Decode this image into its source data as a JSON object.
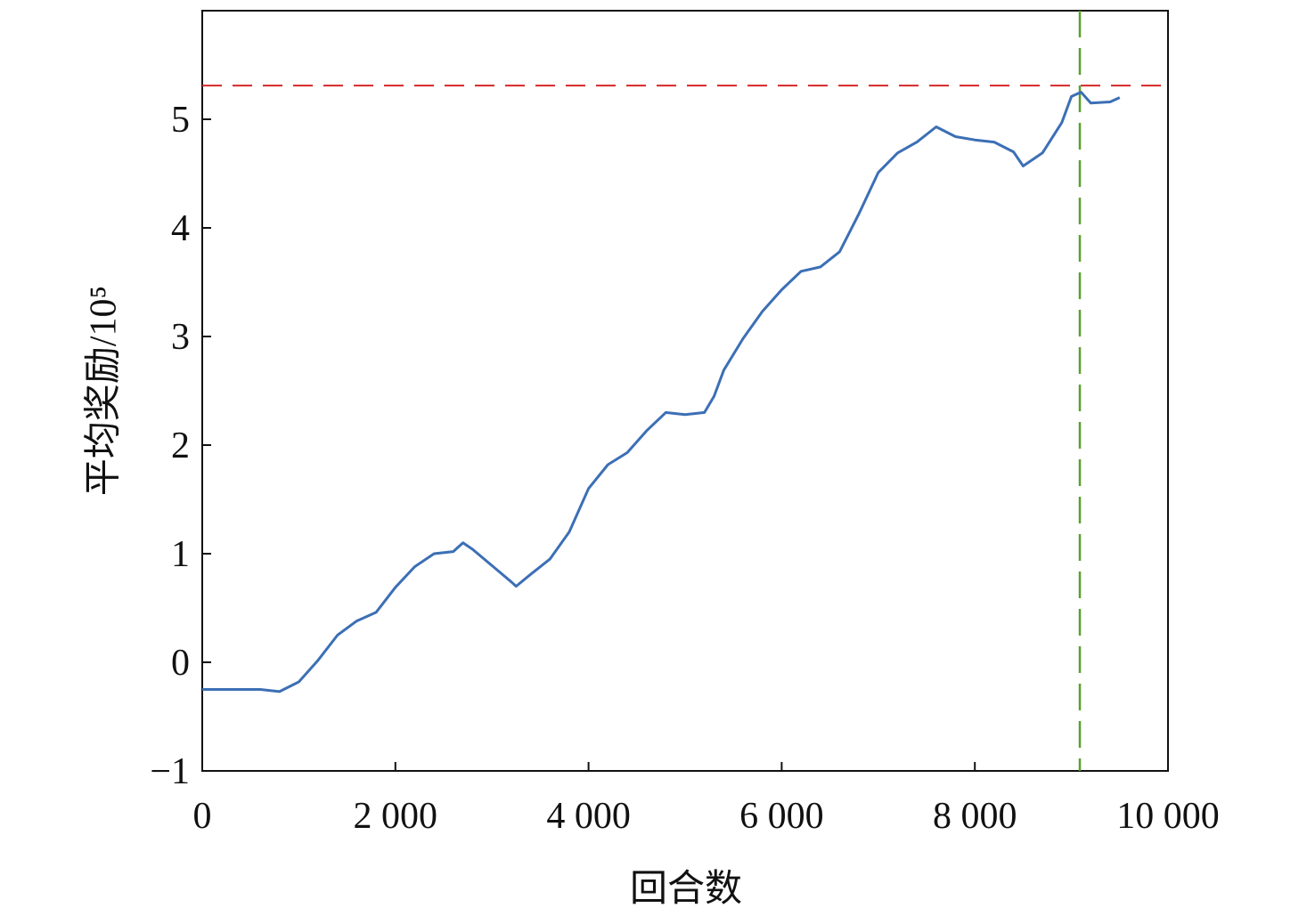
{
  "chart_data": {
    "type": "line",
    "xlabel": "回合数",
    "ylabel": "平均奖励/10⁵",
    "xlim": [
      0,
      10000
    ],
    "ylim": [
      -1,
      6
    ],
    "xticks": [
      0,
      {
        "value": 2000,
        "label": "2 000"
      },
      {
        "value": 4000,
        "label": "4 000"
      },
      {
        "value": 6000,
        "label": "6 000"
      },
      {
        "value": 8000,
        "label": "8 000"
      },
      {
        "value": 10000,
        "label": "10 000"
      }
    ],
    "yticks": [
      {
        "value": -1,
        "label": "−1"
      },
      0,
      1,
      2,
      3,
      4,
      5
    ],
    "x": [
      0,
      200,
      400,
      600,
      800,
      1000,
      1200,
      1400,
      1600,
      1800,
      2000,
      2200,
      2400,
      2600,
      2700,
      2800,
      3000,
      3200,
      3250,
      3400,
      3600,
      3800,
      4000,
      4200,
      4400,
      4600,
      4800,
      5000,
      5200,
      5300,
      5400,
      5600,
      5800,
      6000,
      6200,
      6400,
      6600,
      6800,
      7000,
      7200,
      7400,
      7600,
      7800,
      8000,
      8200,
      8400,
      8500,
      8700,
      8900,
      9000,
      9100,
      9200,
      9400,
      9500
    ],
    "series": [
      {
        "color": "#3c6fb5",
        "values": [
          -0.25,
          -0.25,
          -0.25,
          -0.25,
          -0.27,
          -0.18,
          0.02,
          0.25,
          0.38,
          0.46,
          0.69,
          0.88,
          1.0,
          1.02,
          1.1,
          1.04,
          0.89,
          0.74,
          0.7,
          0.81,
          0.95,
          1.2,
          1.6,
          1.82,
          1.93,
          2.13,
          2.3,
          2.28,
          2.3,
          2.45,
          2.69,
          2.98,
          3.23,
          3.43,
          3.6,
          3.64,
          3.78,
          4.13,
          4.51,
          4.69,
          4.79,
          4.93,
          4.84,
          4.81,
          4.79,
          4.7,
          4.57,
          4.69,
          4.97,
          5.21,
          5.25,
          5.15,
          5.16,
          5.2
        ]
      }
    ],
    "hlines": [
      {
        "value": 5.31,
        "color": "#d62728"
      }
    ],
    "vlines": [
      {
        "value": 9087,
        "color": "#5aa02c"
      }
    ]
  }
}
